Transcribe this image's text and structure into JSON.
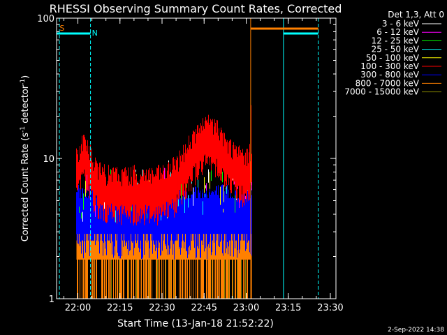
{
  "chart_data": {
    "type": "line",
    "title": "RHESSI Observing Summary Count Rates, Corrected",
    "xlabel": "Start Time (13-Jan-18 21:52:22)",
    "ylabel_main": "Corrected Count Rate (s",
    "ylabel_exp1": "-1",
    "ylabel_mid": " detector",
    "ylabel_exp2": "-1",
    "ylabel_end": ")",
    "y_scale": "log",
    "ylim": [
      1,
      100
    ],
    "xlim": [
      "21:52",
      "23:32"
    ],
    "x_ticks": [
      "22:00",
      "22:15",
      "22:30",
      "22:45",
      "23:00",
      "23:15",
      "23:30"
    ],
    "y_ticks": [
      "1",
      "10",
      "100"
    ],
    "legend_header": "Det 1,3, Att 0",
    "legend_position": "top-right, outside plot",
    "series": [
      {
        "name": "3 - 6 keV",
        "color": "#ffffff",
        "values": [],
        "label": "3 - 6 keV"
      },
      {
        "name": "6 - 12 keV",
        "color": "#ff00ff",
        "label": "6 - 12 keV"
      },
      {
        "name": "12 - 25 keV",
        "color": "#00ff00",
        "label": "12 - 25 keV"
      },
      {
        "name": "25 - 50 keV",
        "color": "#00ffff",
        "label": "25 - 50 keV"
      },
      {
        "name": "50 - 100 keV",
        "color": "#ffff00",
        "label": "50 - 100 keV"
      },
      {
        "name": "100 - 300 keV",
        "color": "#ff0000",
        "label": "100 - 300 keV"
      },
      {
        "name": "300 - 800 keV",
        "color": "#0000ff",
        "label": "300 - 800 keV"
      },
      {
        "name": "800 - 7000 keV",
        "color": "#ff8000",
        "label": "800 - 7000 keV"
      },
      {
        "name": "7000 - 15000 keV",
        "color": "#808000",
        "label": "7000 - 15000 keV"
      }
    ],
    "red_100_300_keV_approx": {
      "x": [
        "22:00",
        "22:02",
        "22:04",
        "22:06",
        "22:10",
        "22:15",
        "22:20",
        "22:25",
        "22:30",
        "22:35",
        "22:38",
        "22:41",
        "22:44",
        "22:47",
        "22:50",
        "22:53",
        "22:56",
        "22:59",
        "23:00",
        "23:02"
      ],
      "y": [
        8,
        11,
        9,
        7,
        6,
        6,
        6,
        6,
        6,
        7,
        9,
        11,
        13,
        14,
        13,
        10,
        9,
        8,
        8,
        9
      ]
    },
    "annotations": [
      {
        "text": "S",
        "color": "#ff8000",
        "x": "21:53"
      },
      {
        "text": "N",
        "color": "#00ffff",
        "x": "22:04"
      }
    ],
    "footer_date": "2-Sep-2022 14:38"
  }
}
